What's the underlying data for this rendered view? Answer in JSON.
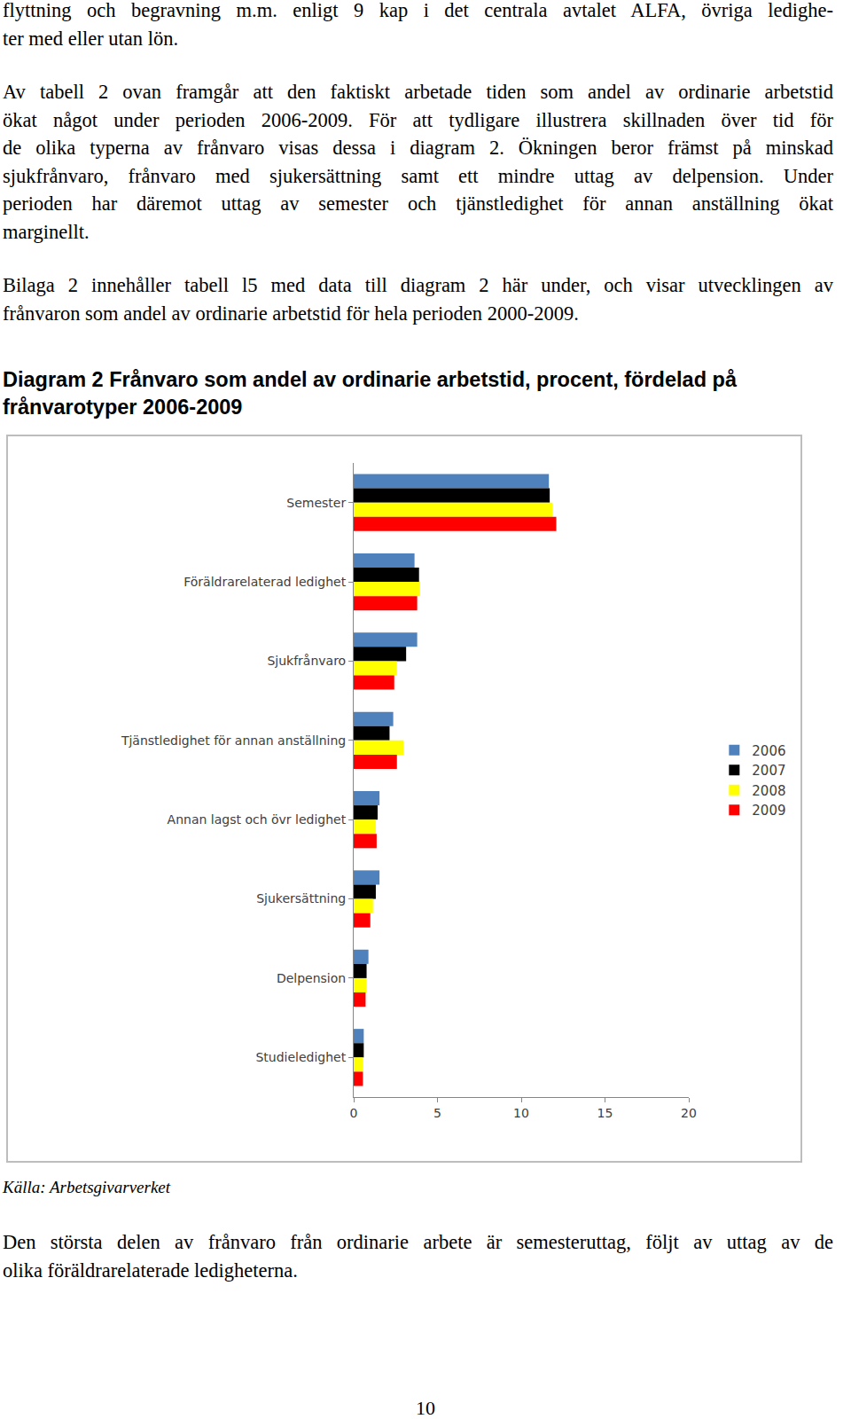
{
  "top_lines": [
    "flyttning och begravning m.m. enligt 9 kap i det centrala avtalet ALFA, övriga ledighe-",
    "ter med eller utan lön."
  ],
  "paragraph_1": [
    "Av tabell 2 ovan framgår att den faktiskt arbetade tiden som andel av ordinarie arbetstid",
    "ökat något under perioden 2006-2009. För att tydligare illustrera skillnaden över tid för",
    "de olika typerna av frånvaro visas dessa i diagram 2. Ökningen beror främst på minskad",
    "sjukfrånvaro, frånvaro med sjukersättning samt ett mindre uttag av delpension. Under",
    "perioden har däremot uttag av semester och tjänstledighet för annan anställning ökat",
    "marginellt."
  ],
  "paragraph_2": [
    "Bilaga 2 innehåller tabell l5 med data till diagram 2 här under, och visar utvecklingen av",
    "frånvaron som andel av ordinarie arbetstid för hela perioden 2000-2009."
  ],
  "figure_title": [
    "Diagram 2 Frånvaro som andel av ordinarie arbetstid, procent, fördelad på",
    "frånvarotyper 2006-2009"
  ],
  "chart_data": {
    "type": "bar",
    "orientation": "horizontal",
    "categories": [
      "Semester",
      "Föräldrarelaterad ledighet",
      "Sjukfrånvaro",
      "Tjänstledighet för annan anställning",
      "Annan lagst och övr ledighet",
      "Sjukersättning",
      "Delpension",
      "Studieledighet"
    ],
    "series": [
      {
        "name": "2006",
        "color": "#4f81bd",
        "values": [
          11.65,
          3.63,
          3.79,
          2.36,
          1.54,
          1.54,
          0.88,
          0.6
        ]
      },
      {
        "name": "2007",
        "color": "#000000",
        "values": [
          11.7,
          3.9,
          3.13,
          2.14,
          1.43,
          1.32,
          0.77,
          0.6
        ]
      },
      {
        "name": "2008",
        "color": "#ffff00",
        "values": [
          11.87,
          3.96,
          2.58,
          2.97,
          1.32,
          1.15,
          0.77,
          0.55
        ]
      },
      {
        "name": "2009",
        "color": "#ff0000",
        "values": [
          12.09,
          3.79,
          2.42,
          2.58,
          1.37,
          0.99,
          0.71,
          0.55
        ]
      }
    ],
    "xlim": [
      0,
      20
    ],
    "xticks": [
      0,
      5,
      10,
      15,
      20
    ],
    "grid": false,
    "legend": "right"
  },
  "source": "Källa: Arbetsgivarverket",
  "paragraph_3": [
    "Den största delen av frånvaro från ordinarie arbete är semesteruttag, följt av uttag av de",
    "olika föräldrarelaterade ledigheterna."
  ],
  "page_number": "10"
}
